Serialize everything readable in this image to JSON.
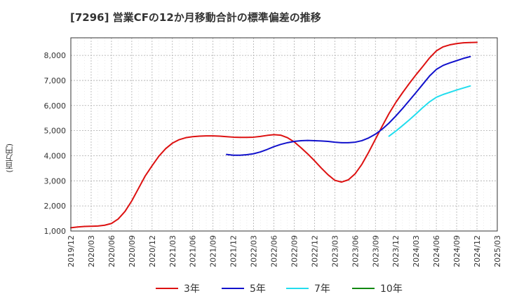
{
  "chart_data": {
    "type": "line",
    "title": "[7296]  営業CFの12か月移動合計の標準偏差の推移",
    "ylabel": "(百万円)",
    "xlabel": "",
    "x_ticks": [
      "2019/12",
      "2020/03",
      "2020/06",
      "2020/09",
      "2020/12",
      "2021/03",
      "2021/06",
      "2021/09",
      "2021/12",
      "2022/03",
      "2022/06",
      "2022/09",
      "2022/12",
      "2023/03",
      "2023/06",
      "2023/09",
      "2023/12",
      "2024/03",
      "2024/06",
      "2024/09",
      "2024/12",
      "2025/03"
    ],
    "y_ticks": [
      "1,000",
      "2,000",
      "3,000",
      "4,000",
      "5,000",
      "6,000",
      "7,000",
      "8,000"
    ],
    "ylim": [
      1000,
      8700
    ],
    "grid": true,
    "legend_position": "bottom",
    "series": [
      {
        "name": "3年",
        "color": "#dd1111",
        "points": [
          [
            "2019/12",
            1130
          ],
          [
            "2020/01",
            1160
          ],
          [
            "2020/02",
            1180
          ],
          [
            "2020/03",
            1190
          ],
          [
            "2020/04",
            1200
          ],
          [
            "2020/05",
            1230
          ],
          [
            "2020/06",
            1300
          ],
          [
            "2020/07",
            1480
          ],
          [
            "2020/08",
            1780
          ],
          [
            "2020/09",
            2200
          ],
          [
            "2020/10",
            2700
          ],
          [
            "2020/11",
            3200
          ],
          [
            "2020/12",
            3600
          ],
          [
            "2021/01",
            3980
          ],
          [
            "2021/02",
            4280
          ],
          [
            "2021/03",
            4500
          ],
          [
            "2021/04",
            4640
          ],
          [
            "2021/05",
            4720
          ],
          [
            "2021/06",
            4760
          ],
          [
            "2021/07",
            4780
          ],
          [
            "2021/08",
            4790
          ],
          [
            "2021/09",
            4790
          ],
          [
            "2021/10",
            4780
          ],
          [
            "2021/11",
            4760
          ],
          [
            "2021/12",
            4740
          ],
          [
            "2022/01",
            4730
          ],
          [
            "2022/02",
            4730
          ],
          [
            "2022/03",
            4740
          ],
          [
            "2022/04",
            4770
          ],
          [
            "2022/05",
            4810
          ],
          [
            "2022/06",
            4840
          ],
          [
            "2022/07",
            4820
          ],
          [
            "2022/08",
            4720
          ],
          [
            "2022/09",
            4550
          ],
          [
            "2022/10",
            4320
          ],
          [
            "2022/11",
            4070
          ],
          [
            "2022/12",
            3800
          ],
          [
            "2023/01",
            3510
          ],
          [
            "2023/02",
            3240
          ],
          [
            "2023/03",
            3020
          ],
          [
            "2023/04",
            2950
          ],
          [
            "2023/05",
            3040
          ],
          [
            "2023/06",
            3280
          ],
          [
            "2023/07",
            3660
          ],
          [
            "2023/08",
            4140
          ],
          [
            "2023/09",
            4660
          ],
          [
            "2023/10",
            5180
          ],
          [
            "2023/11",
            5680
          ],
          [
            "2023/12",
            6120
          ],
          [
            "2024/01",
            6510
          ],
          [
            "2024/02",
            6880
          ],
          [
            "2024/03",
            7230
          ],
          [
            "2024/04",
            7560
          ],
          [
            "2024/05",
            7900
          ],
          [
            "2024/06",
            8180
          ],
          [
            "2024/07",
            8340
          ],
          [
            "2024/08",
            8420
          ],
          [
            "2024/09",
            8470
          ],
          [
            "2024/10",
            8500
          ],
          [
            "2024/11",
            8510
          ],
          [
            "2024/12",
            8520
          ]
        ]
      },
      {
        "name": "5年",
        "color": "#1111cc",
        "points": [
          [
            "2021/11",
            4050
          ],
          [
            "2021/12",
            4020
          ],
          [
            "2022/01",
            4020
          ],
          [
            "2022/02",
            4040
          ],
          [
            "2022/03",
            4080
          ],
          [
            "2022/04",
            4150
          ],
          [
            "2022/05",
            4250
          ],
          [
            "2022/06",
            4360
          ],
          [
            "2022/07",
            4450
          ],
          [
            "2022/08",
            4520
          ],
          [
            "2022/09",
            4570
          ],
          [
            "2022/10",
            4600
          ],
          [
            "2022/11",
            4610
          ],
          [
            "2022/12",
            4600
          ],
          [
            "2023/01",
            4590
          ],
          [
            "2023/02",
            4570
          ],
          [
            "2023/03",
            4540
          ],
          [
            "2023/04",
            4520
          ],
          [
            "2023/05",
            4520
          ],
          [
            "2023/06",
            4540
          ],
          [
            "2023/07",
            4600
          ],
          [
            "2023/08",
            4710
          ],
          [
            "2023/09",
            4860
          ],
          [
            "2023/10",
            5060
          ],
          [
            "2023/11",
            5300
          ],
          [
            "2023/12",
            5580
          ],
          [
            "2024/01",
            5880
          ],
          [
            "2024/02",
            6200
          ],
          [
            "2024/03",
            6520
          ],
          [
            "2024/04",
            6850
          ],
          [
            "2024/05",
            7180
          ],
          [
            "2024/06",
            7440
          ],
          [
            "2024/07",
            7600
          ],
          [
            "2024/08",
            7700
          ],
          [
            "2024/09",
            7790
          ],
          [
            "2024/10",
            7880
          ],
          [
            "2024/11",
            7950
          ]
        ]
      },
      {
        "name": "7年",
        "color": "#22ddee",
        "points": [
          [
            "2023/11",
            4780
          ],
          [
            "2023/12",
            4980
          ],
          [
            "2024/01",
            5200
          ],
          [
            "2024/02",
            5430
          ],
          [
            "2024/03",
            5670
          ],
          [
            "2024/04",
            5920
          ],
          [
            "2024/05",
            6150
          ],
          [
            "2024/06",
            6330
          ],
          [
            "2024/07",
            6440
          ],
          [
            "2024/08",
            6530
          ],
          [
            "2024/09",
            6620
          ],
          [
            "2024/10",
            6700
          ],
          [
            "2024/11",
            6780
          ]
        ]
      },
      {
        "name": "10年",
        "color": "#118811",
        "points": []
      }
    ]
  }
}
